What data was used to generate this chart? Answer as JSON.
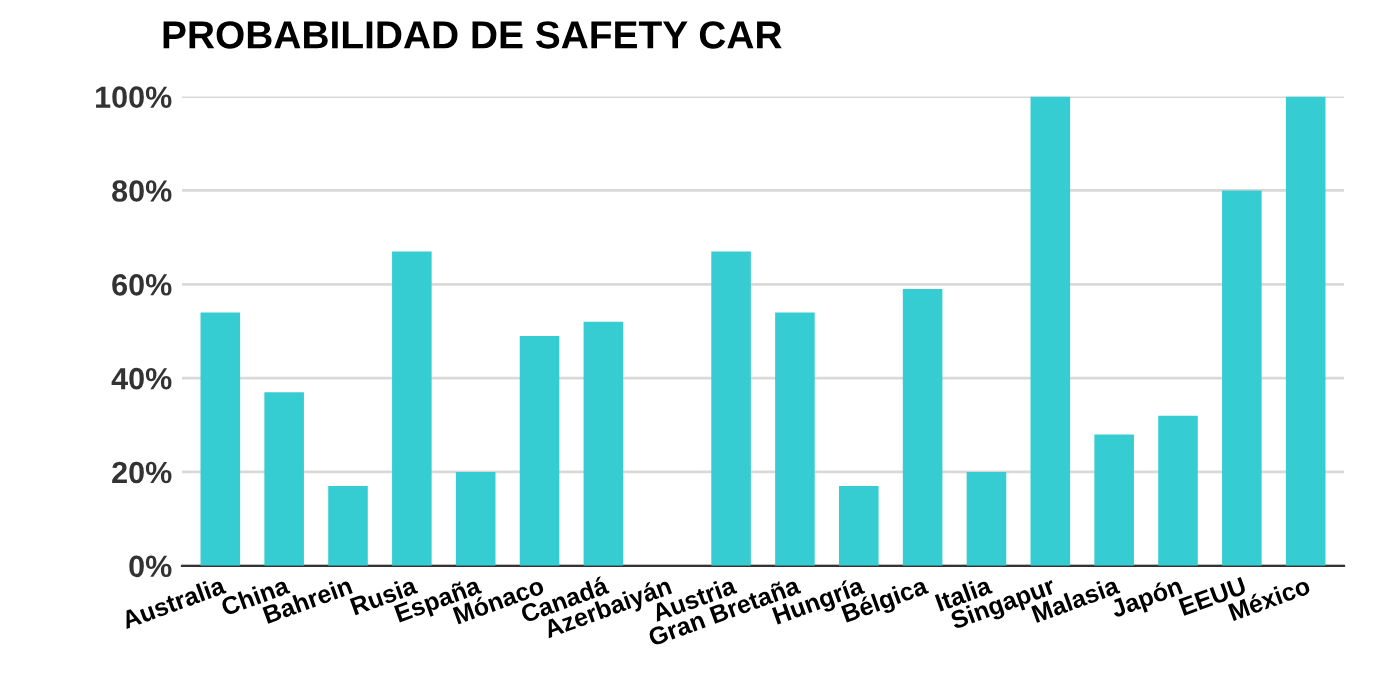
{
  "chart_data": {
    "type": "bar",
    "title": "PROBABILIDAD DE SAFETY CAR",
    "categories": [
      "Australia",
      "China",
      "Bahrein",
      "Rusia",
      "España",
      "Mónaco",
      "Canadá",
      "Azerbaiyán",
      "Austria",
      "Gran Bretaña",
      "Hungría",
      "Bélgica",
      "Italia",
      "Singapur",
      "Malasia",
      "Japón",
      "EEUU",
      "México"
    ],
    "values": [
      54,
      37,
      17,
      67,
      20,
      49,
      52,
      0,
      67,
      54,
      17,
      59,
      20,
      100,
      28,
      32,
      80,
      100
    ],
    "color": "#36cdd2",
    "ylim": [
      0,
      100
    ],
    "yticks": [
      {
        "value": 0,
        "label": "0%"
      },
      {
        "value": 20,
        "label": "20%"
      },
      {
        "value": 40,
        "label": "40%"
      },
      {
        "value": 60,
        "label": "60%"
      },
      {
        "value": 80,
        "label": "80%"
      },
      {
        "value": 100,
        "label": "100%"
      }
    ],
    "grid": "y"
  }
}
